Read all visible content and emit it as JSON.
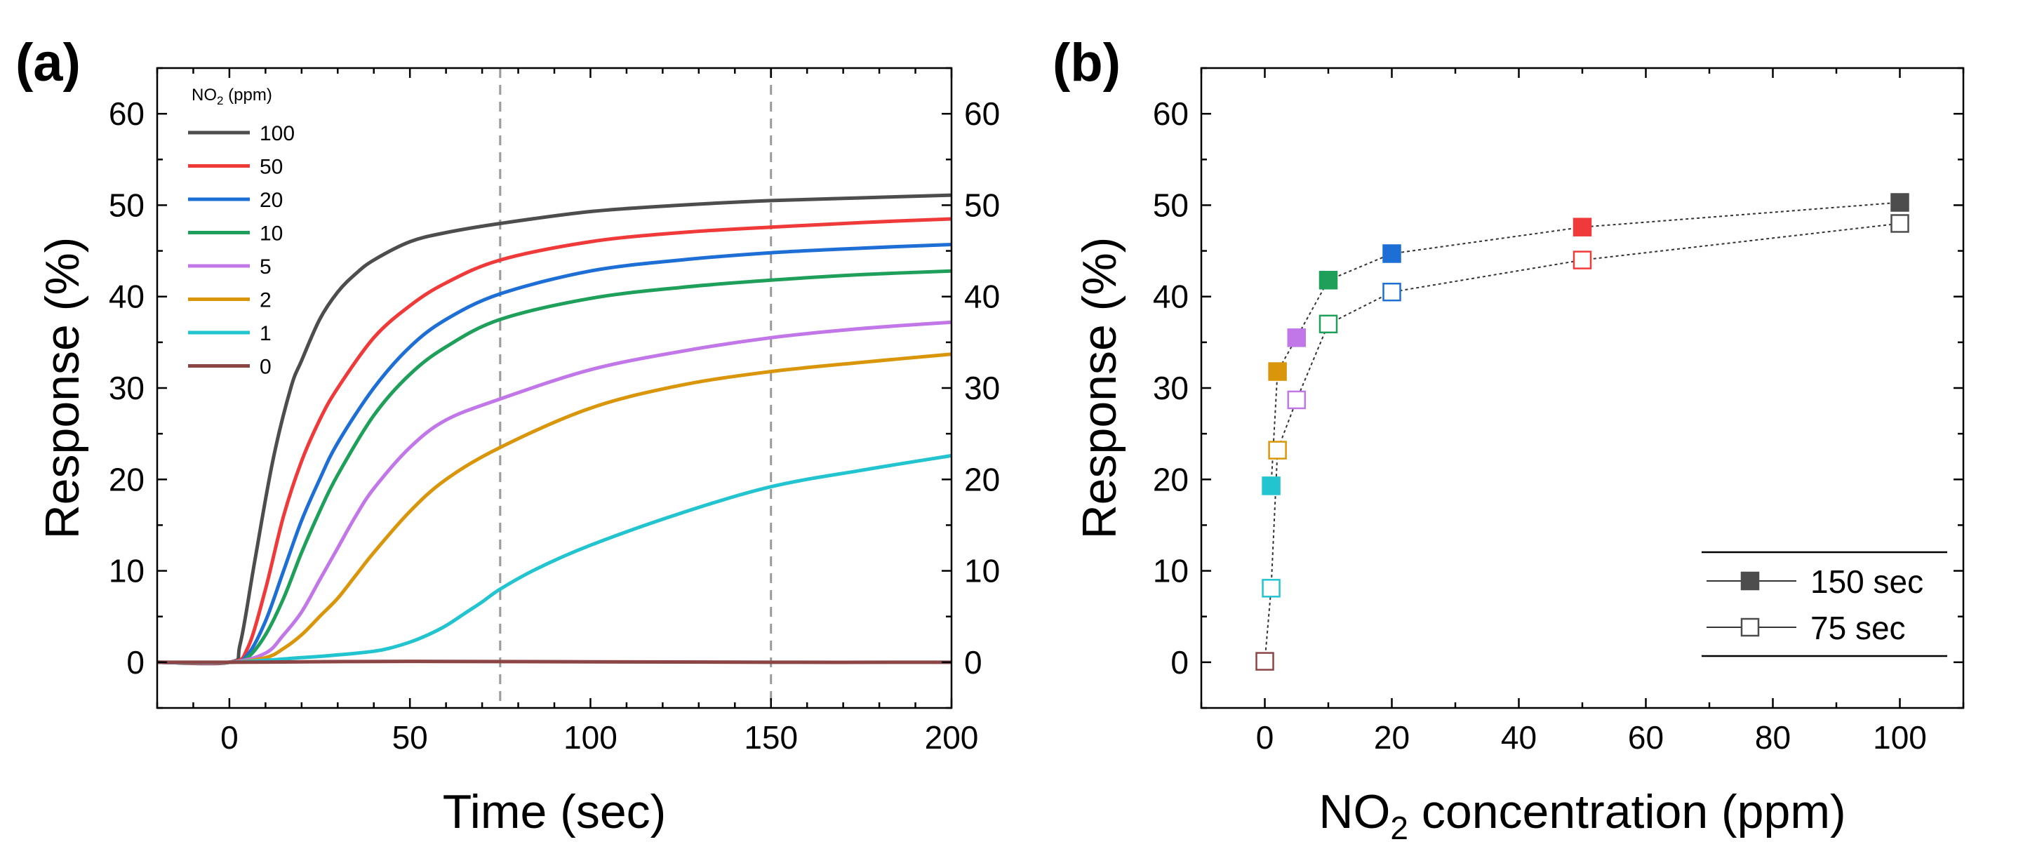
{
  "chart_data": [
    {
      "id": "a",
      "panel_label": "(a)",
      "type": "line",
      "title": "",
      "xlabel": "Time (sec)",
      "ylabel": "Response (%)",
      "xlim": [
        -20,
        200
      ],
      "ylim": [
        -5,
        65
      ],
      "xticks": [
        "0",
        "50",
        "100",
        "150",
        "200"
      ],
      "yticks": [
        "0",
        "10",
        "20",
        "30",
        "40",
        "50",
        "60"
      ],
      "right_yticks": [
        "0",
        "10",
        "20",
        "30",
        "40",
        "50",
        "60"
      ],
      "reference_lines_x": [
        75,
        150
      ],
      "legend": {
        "title_main": "NO",
        "title_sub": "2",
        "title_tail": " (ppm)",
        "position": "top-left"
      },
      "series": [
        {
          "name": "100",
          "color": "#4d4d4d",
          "x": [
            -20,
            0,
            3,
            7,
            12,
            17,
            20,
            25,
            30,
            35,
            40,
            50,
            60,
            75,
            100,
            125,
            150,
            175,
            200
          ],
          "y": [
            0,
            0,
            2,
            11,
            22,
            30,
            33,
            37.5,
            40.5,
            42.5,
            44,
            46,
            47,
            48,
            49.3,
            50,
            50.5,
            50.8,
            51.1
          ]
        },
        {
          "name": "50",
          "color": "#f03a3a",
          "x": [
            -20,
            0,
            5,
            10,
            15,
            20,
            25,
            30,
            40,
            50,
            60,
            75,
            100,
            125,
            150,
            175,
            200
          ],
          "y": [
            0,
            0,
            1.5,
            8,
            16,
            22,
            26.5,
            30,
            35.5,
            39,
            41.5,
            44,
            46,
            47,
            47.6,
            48.1,
            48.5
          ]
        },
        {
          "name": "20",
          "color": "#1d6fd6",
          "x": [
            -20,
            0,
            5,
            10,
            15,
            20,
            25,
            30,
            40,
            50,
            60,
            75,
            100,
            125,
            150,
            175,
            200
          ],
          "y": [
            0,
            0,
            0.8,
            4.5,
            10,
            15.5,
            20,
            24,
            30,
            34.5,
            37.5,
            40.3,
            42.8,
            44,
            44.8,
            45.3,
            45.7
          ]
        },
        {
          "name": "10",
          "color": "#1fa05a",
          "x": [
            -20,
            0,
            5,
            10,
            15,
            20,
            25,
            30,
            40,
            50,
            60,
            75,
            100,
            125,
            150,
            175,
            200
          ],
          "y": [
            0,
            0,
            0.5,
            3,
            7,
            12,
            16.5,
            20.5,
            27,
            31.5,
            34.5,
            37.5,
            39.8,
            41,
            41.8,
            42.4,
            42.8
          ]
        },
        {
          "name": "5",
          "color": "#c177e8",
          "x": [
            -20,
            0,
            10,
            15,
            20,
            25,
            30,
            35,
            40,
            50,
            60,
            75,
            100,
            125,
            150,
            175,
            200
          ],
          "y": [
            0,
            0,
            1,
            3,
            5.5,
            9,
            12.5,
            16,
            19,
            23.5,
            26.5,
            28.8,
            32,
            34,
            35.5,
            36.5,
            37.2
          ]
        },
        {
          "name": "2",
          "color": "#d9960a",
          "x": [
            -20,
            0,
            10,
            15,
            20,
            25,
            30,
            35,
            40,
            50,
            60,
            75,
            100,
            125,
            150,
            175,
            200
          ],
          "y": [
            0,
            0,
            0.5,
            1.5,
            3,
            5,
            7,
            9.5,
            12,
            16.5,
            20,
            23.5,
            27.8,
            30.3,
            31.8,
            32.8,
            33.7
          ]
        },
        {
          "name": "1",
          "color": "#21c4cf",
          "x": [
            -20,
            0,
            20,
            30,
            40,
            45,
            50,
            55,
            60,
            65,
            70,
            75,
            85,
            100,
            125,
            150,
            175,
            200
          ],
          "y": [
            0,
            0,
            0.5,
            0.8,
            1.2,
            1.6,
            2.2,
            3,
            4,
            5.3,
            6.6,
            8,
            10.2,
            12.8,
            16.3,
            19.2,
            21,
            22.6
          ]
        },
        {
          "name": "0",
          "color": "#8b4545",
          "x": [
            -20,
            0,
            50,
            100,
            150,
            200
          ],
          "y": [
            0,
            0,
            0.1,
            0.05,
            0,
            0
          ]
        }
      ]
    },
    {
      "id": "b",
      "panel_label": "(b)",
      "type": "scatter",
      "title": "",
      "xlabel_main": "NO",
      "xlabel_sub": "2",
      "xlabel_tail": " concentration (ppm)",
      "ylabel": "Response (%)",
      "xlim": [
        -10,
        110
      ],
      "ylim": [
        -5,
        65
      ],
      "xticks": [
        "0",
        "20",
        "40",
        "60",
        "80",
        "100"
      ],
      "yticks": [
        "0",
        "10",
        "20",
        "30",
        "40",
        "50",
        "60"
      ],
      "legend": {
        "position": "bottom-right"
      },
      "concentrations": [
        0,
        1,
        2,
        5,
        10,
        20,
        50,
        100
      ],
      "point_colors": [
        "#8b4545",
        "#21c4cf",
        "#d9960a",
        "#c177e8",
        "#1fa05a",
        "#1d6fd6",
        "#f03a3a",
        "#4d4d4d"
      ],
      "series": [
        {
          "name": "150 sec",
          "marker": "filled-square",
          "x": [
            1,
            2,
            5,
            10,
            20,
            50,
            100
          ],
          "y": [
            19.3,
            31.8,
            35.5,
            41.8,
            44.7,
            47.6,
            50.3
          ],
          "point_indices": [
            1,
            2,
            3,
            4,
            5,
            6,
            7
          ]
        },
        {
          "name": "75 sec",
          "marker": "open-square",
          "x": [
            0,
            1,
            2,
            5,
            10,
            20,
            50,
            100
          ],
          "y": [
            0.1,
            8.1,
            23.2,
            28.7,
            37,
            40.5,
            44,
            48
          ],
          "point_indices": [
            0,
            1,
            2,
            3,
            4,
            5,
            6,
            7
          ]
        }
      ]
    }
  ]
}
